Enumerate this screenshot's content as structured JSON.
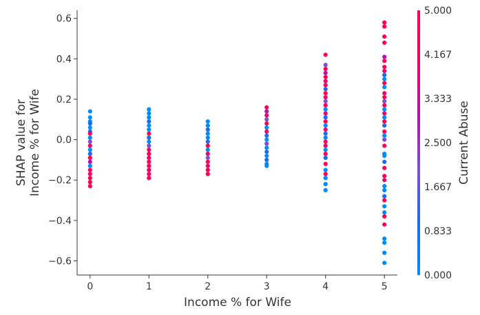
{
  "chart_data": {
    "type": "scatter",
    "title": "",
    "xlabel": "Income % for Wife",
    "ylabel_lines": [
      "SHAP value for",
      "Income % for Wife"
    ],
    "xlim": [
      -0.22,
      5.22
    ],
    "ylim": [
      -0.67,
      0.64
    ],
    "x_ticks": [
      0,
      1,
      2,
      3,
      4,
      5
    ],
    "y_ticks": [
      -0.6,
      -0.4,
      -0.2,
      0.0,
      0.2,
      0.4,
      0.6
    ],
    "y_tick_labels": [
      "−0.6",
      "−0.4",
      "−0.2",
      "0.0",
      "0.2",
      "0.4",
      "0.6"
    ],
    "grid": false,
    "colorbar": {
      "label": "Current Abuse",
      "min": 0.0,
      "max": 5.0,
      "ticks": [
        0.0,
        0.833,
        1.667,
        2.5,
        3.333,
        4.167,
        5.0
      ],
      "tick_labels": [
        "0.000",
        "0.833",
        "1.667",
        "2.500",
        "3.333",
        "4.167",
        "5.000"
      ],
      "colors": [
        "#008bfa",
        "#1e6ae8",
        "#7d4fd0",
        "#b412a8",
        "#e8086a",
        "#ff0052"
      ]
    },
    "points": [
      {
        "x": 0,
        "y": 0.14,
        "c": 0
      },
      {
        "x": 0,
        "y": 0.11,
        "c": 0
      },
      {
        "x": 0,
        "y": 0.09,
        "c": 0
      },
      {
        "x": 0,
        "y": 0.08,
        "c": 1
      },
      {
        "x": 0,
        "y": 0.06,
        "c": 0
      },
      {
        "x": 0,
        "y": 0.04,
        "c": 1
      },
      {
        "x": 0,
        "y": 0.03,
        "c": 5
      },
      {
        "x": 0,
        "y": 0.01,
        "c": 0
      },
      {
        "x": 0,
        "y": -0.01,
        "c": 2
      },
      {
        "x": 0,
        "y": -0.03,
        "c": 4
      },
      {
        "x": 0,
        "y": -0.05,
        "c": 0
      },
      {
        "x": 0,
        "y": -0.07,
        "c": 1
      },
      {
        "x": 0,
        "y": -0.09,
        "c": 5
      },
      {
        "x": 0,
        "y": -0.11,
        "c": 3
      },
      {
        "x": 0,
        "y": -0.13,
        "c": 0
      },
      {
        "x": 0,
        "y": -0.15,
        "c": 5
      },
      {
        "x": 0,
        "y": -0.17,
        "c": 4
      },
      {
        "x": 0,
        "y": -0.19,
        "c": 5
      },
      {
        "x": 0,
        "y": -0.21,
        "c": 5
      },
      {
        "x": 0,
        "y": -0.23,
        "c": 5
      },
      {
        "x": 1,
        "y": 0.15,
        "c": 0
      },
      {
        "x": 1,
        "y": 0.13,
        "c": 0
      },
      {
        "x": 1,
        "y": 0.11,
        "c": 0
      },
      {
        "x": 1,
        "y": 0.09,
        "c": 1
      },
      {
        "x": 1,
        "y": 0.07,
        "c": 0
      },
      {
        "x": 1,
        "y": 0.05,
        "c": 0
      },
      {
        "x": 1,
        "y": 0.03,
        "c": 5
      },
      {
        "x": 1,
        "y": 0.01,
        "c": 1
      },
      {
        "x": 1,
        "y": -0.01,
        "c": 0
      },
      {
        "x": 1,
        "y": -0.03,
        "c": 2
      },
      {
        "x": 1,
        "y": -0.05,
        "c": 4
      },
      {
        "x": 1,
        "y": -0.07,
        "c": 5
      },
      {
        "x": 1,
        "y": -0.09,
        "c": 4
      },
      {
        "x": 1,
        "y": -0.11,
        "c": 5
      },
      {
        "x": 1,
        "y": -0.13,
        "c": 5
      },
      {
        "x": 1,
        "y": -0.15,
        "c": 4
      },
      {
        "x": 1,
        "y": -0.17,
        "c": 5
      },
      {
        "x": 1,
        "y": -0.19,
        "c": 5
      },
      {
        "x": 2,
        "y": 0.09,
        "c": 0
      },
      {
        "x": 2,
        "y": 0.07,
        "c": 0
      },
      {
        "x": 2,
        "y": 0.05,
        "c": 1
      },
      {
        "x": 2,
        "y": 0.03,
        "c": 0
      },
      {
        "x": 2,
        "y": 0.01,
        "c": 0
      },
      {
        "x": 2,
        "y": -0.01,
        "c": 1
      },
      {
        "x": 2,
        "y": -0.03,
        "c": 5
      },
      {
        "x": 2,
        "y": -0.05,
        "c": 0
      },
      {
        "x": 2,
        "y": -0.07,
        "c": 4
      },
      {
        "x": 2,
        "y": -0.09,
        "c": 2
      },
      {
        "x": 2,
        "y": -0.11,
        "c": 5
      },
      {
        "x": 2,
        "y": -0.13,
        "c": 4
      },
      {
        "x": 2,
        "y": -0.15,
        "c": 5
      },
      {
        "x": 2,
        "y": -0.17,
        "c": 5
      },
      {
        "x": 3,
        "y": 0.16,
        "c": 5
      },
      {
        "x": 3,
        "y": 0.14,
        "c": 3
      },
      {
        "x": 3,
        "y": 0.12,
        "c": 4
      },
      {
        "x": 3,
        "y": 0.1,
        "c": 2
      },
      {
        "x": 3,
        "y": 0.08,
        "c": 5
      },
      {
        "x": 3,
        "y": 0.06,
        "c": 0
      },
      {
        "x": 3,
        "y": 0.04,
        "c": 4
      },
      {
        "x": 3,
        "y": 0.02,
        "c": 1
      },
      {
        "x": 3,
        "y": 0.0,
        "c": 0
      },
      {
        "x": 3,
        "y": -0.02,
        "c": 2
      },
      {
        "x": 3,
        "y": -0.04,
        "c": 0
      },
      {
        "x": 3,
        "y": -0.06,
        "c": 1
      },
      {
        "x": 3,
        "y": -0.08,
        "c": 0
      },
      {
        "x": 3,
        "y": -0.1,
        "c": 1
      },
      {
        "x": 3,
        "y": -0.12,
        "c": 0
      },
      {
        "x": 3,
        "y": -0.13,
        "c": 0
      },
      {
        "x": 4,
        "y": 0.42,
        "c": 5
      },
      {
        "x": 4,
        "y": 0.37,
        "c": 2
      },
      {
        "x": 4,
        "y": 0.35,
        "c": 5
      },
      {
        "x": 4,
        "y": 0.33,
        "c": 3
      },
      {
        "x": 4,
        "y": 0.31,
        "c": 5
      },
      {
        "x": 4,
        "y": 0.29,
        "c": 4
      },
      {
        "x": 4,
        "y": 0.27,
        "c": 5
      },
      {
        "x": 4,
        "y": 0.25,
        "c": 1
      },
      {
        "x": 4,
        "y": 0.23,
        "c": 5
      },
      {
        "x": 4,
        "y": 0.21,
        "c": 4
      },
      {
        "x": 4,
        "y": 0.19,
        "c": 2
      },
      {
        "x": 4,
        "y": 0.17,
        "c": 5
      },
      {
        "x": 4,
        "y": 0.15,
        "c": 0
      },
      {
        "x": 4,
        "y": 0.13,
        "c": 4
      },
      {
        "x": 4,
        "y": 0.11,
        "c": 1
      },
      {
        "x": 4,
        "y": 0.09,
        "c": 5
      },
      {
        "x": 4,
        "y": 0.07,
        "c": 0
      },
      {
        "x": 4,
        "y": 0.05,
        "c": 4
      },
      {
        "x": 4,
        "y": 0.03,
        "c": 1
      },
      {
        "x": 4,
        "y": 0.01,
        "c": 0
      },
      {
        "x": 4,
        "y": -0.01,
        "c": 5
      },
      {
        "x": 4,
        "y": -0.03,
        "c": 4
      },
      {
        "x": 4,
        "y": -0.05,
        "c": 0
      },
      {
        "x": 4,
        "y": -0.07,
        "c": 5
      },
      {
        "x": 4,
        "y": -0.09,
        "c": 1
      },
      {
        "x": 4,
        "y": -0.12,
        "c": 5
      },
      {
        "x": 4,
        "y": -0.15,
        "c": 0
      },
      {
        "x": 4,
        "y": -0.17,
        "c": 5
      },
      {
        "x": 4,
        "y": -0.19,
        "c": 0
      },
      {
        "x": 4,
        "y": -0.22,
        "c": 0
      },
      {
        "x": 4,
        "y": -0.25,
        "c": 0
      },
      {
        "x": 5,
        "y": 0.58,
        "c": 5
      },
      {
        "x": 5,
        "y": 0.56,
        "c": 5
      },
      {
        "x": 5,
        "y": 0.51,
        "c": 5
      },
      {
        "x": 5,
        "y": 0.48,
        "c": 5
      },
      {
        "x": 5,
        "y": 0.41,
        "c": 3
      },
      {
        "x": 5,
        "y": 0.39,
        "c": 5
      },
      {
        "x": 5,
        "y": 0.36,
        "c": 4
      },
      {
        "x": 5,
        "y": 0.34,
        "c": 5
      },
      {
        "x": 5,
        "y": 0.32,
        "c": 1
      },
      {
        "x": 5,
        "y": 0.3,
        "c": 0
      },
      {
        "x": 5,
        "y": 0.28,
        "c": 5
      },
      {
        "x": 5,
        "y": 0.26,
        "c": 0
      },
      {
        "x": 5,
        "y": 0.23,
        "c": 4
      },
      {
        "x": 5,
        "y": 0.21,
        "c": 5
      },
      {
        "x": 5,
        "y": 0.19,
        "c": 2
      },
      {
        "x": 5,
        "y": 0.17,
        "c": 5
      },
      {
        "x": 5,
        "y": 0.15,
        "c": 0
      },
      {
        "x": 5,
        "y": 0.13,
        "c": 4
      },
      {
        "x": 5,
        "y": 0.11,
        "c": 0
      },
      {
        "x": 5,
        "y": 0.09,
        "c": 5
      },
      {
        "x": 5,
        "y": 0.07,
        "c": 1
      },
      {
        "x": 5,
        "y": 0.04,
        "c": 5
      },
      {
        "x": 5,
        "y": 0.02,
        "c": 0
      },
      {
        "x": 5,
        "y": 0.0,
        "c": 2
      },
      {
        "x": 5,
        "y": -0.03,
        "c": 5
      },
      {
        "x": 5,
        "y": -0.07,
        "c": 0
      },
      {
        "x": 5,
        "y": -0.08,
        "c": 0
      },
      {
        "x": 5,
        "y": -0.11,
        "c": 1
      },
      {
        "x": 5,
        "y": -0.14,
        "c": 5
      },
      {
        "x": 5,
        "y": -0.18,
        "c": 5
      },
      {
        "x": 5,
        "y": -0.2,
        "c": 4
      },
      {
        "x": 5,
        "y": -0.23,
        "c": 0
      },
      {
        "x": 5,
        "y": -0.25,
        "c": 0
      },
      {
        "x": 5,
        "y": -0.28,
        "c": 1
      },
      {
        "x": 5,
        "y": -0.3,
        "c": 5
      },
      {
        "x": 5,
        "y": -0.33,
        "c": 0
      },
      {
        "x": 5,
        "y": -0.36,
        "c": 0
      },
      {
        "x": 5,
        "y": -0.38,
        "c": 5
      },
      {
        "x": 5,
        "y": -0.42,
        "c": 5
      },
      {
        "x": 5,
        "y": -0.49,
        "c": 0
      },
      {
        "x": 5,
        "y": -0.51,
        "c": 0
      },
      {
        "x": 5,
        "y": -0.56,
        "c": 0
      },
      {
        "x": 5,
        "y": -0.61,
        "c": 0
      }
    ]
  }
}
